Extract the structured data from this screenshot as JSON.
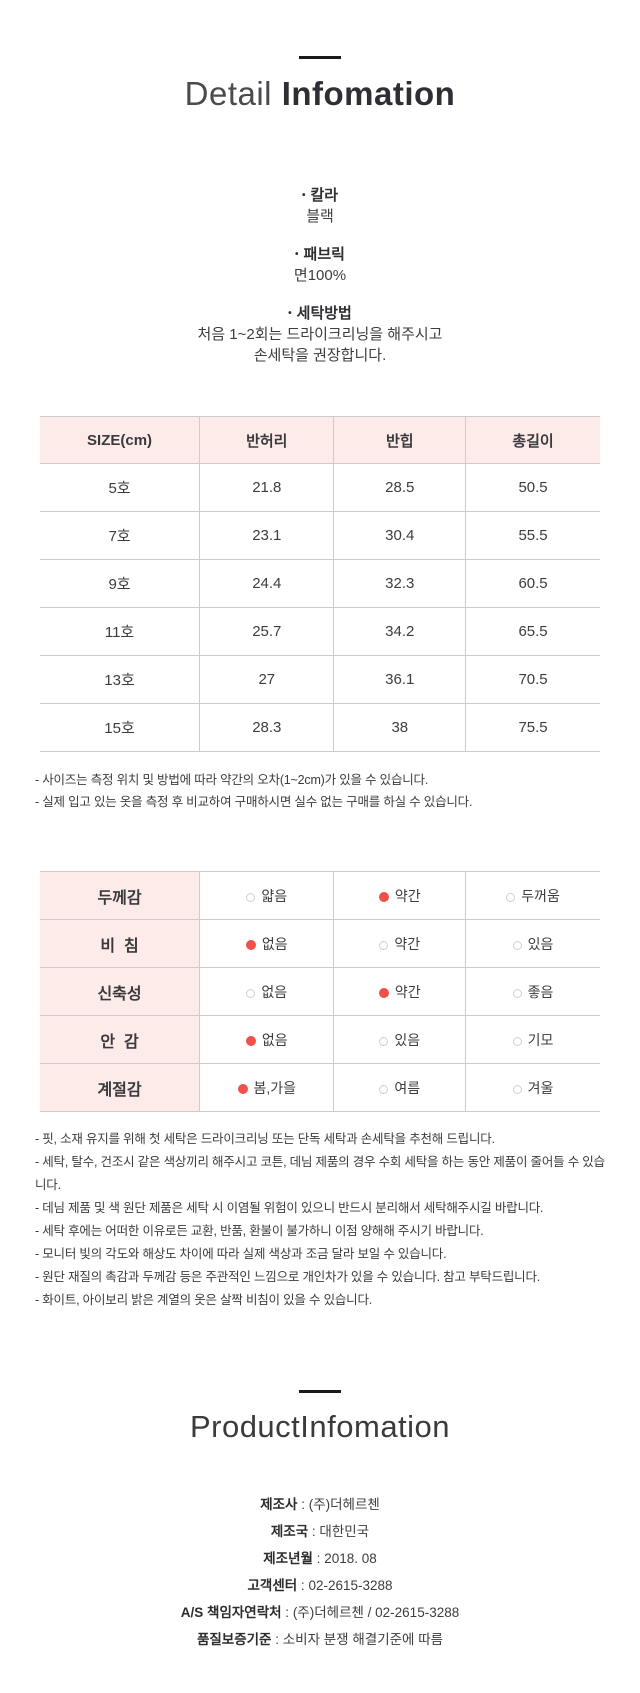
{
  "colors": {
    "header_pink": "#fcebe9",
    "accent_red": "#f0504a",
    "table_border": "#cccccc"
  },
  "header": {
    "title_light": "Detail ",
    "title_bold": "Infomation"
  },
  "specs": [
    {
      "label": "칼라",
      "lines": [
        "블랙"
      ]
    },
    {
      "label": "패브릭",
      "lines": [
        "면100%"
      ]
    },
    {
      "label": "세탁방법",
      "lines": [
        "처음 1~2회는 드라이크리닝을 해주시고",
        "손세탁을 권장합니다."
      ]
    }
  ],
  "size_table": {
    "headers": [
      "SIZE(cm)",
      "반허리",
      "반힙",
      "총길이"
    ],
    "rows": [
      [
        "5호",
        "21.8",
        "28.5",
        "50.5"
      ],
      [
        "7호",
        "23.1",
        "30.4",
        "55.5"
      ],
      [
        "9호",
        "24.4",
        "32.3",
        "60.5"
      ],
      [
        "11호",
        "25.7",
        "34.2",
        "65.5"
      ],
      [
        "13호",
        "27",
        "36.1",
        "70.5"
      ],
      [
        "15호",
        "28.3",
        "38",
        "75.5"
      ]
    ]
  },
  "size_notes": [
    "- 사이즈는 측정 위치 및 방법에 따라 약간의 오차(1~2cm)가 있을 수 있습니다.",
    "- 실제 입고 있는 옷을 측정 후 비교하여 구매하시면 실수 없는 구매를 하실 수 있습니다."
  ],
  "attr_table": {
    "rows": [
      {
        "label": "두께감",
        "options": [
          {
            "text": "얇음",
            "selected": false
          },
          {
            "text": "약간",
            "selected": true
          },
          {
            "text": "두꺼움",
            "selected": false
          }
        ]
      },
      {
        "label": "비  침",
        "options": [
          {
            "text": "없음",
            "selected": true
          },
          {
            "text": "약간",
            "selected": false
          },
          {
            "text": "있음",
            "selected": false
          }
        ]
      },
      {
        "label": "신축성",
        "options": [
          {
            "text": "없음",
            "selected": false
          },
          {
            "text": "약간",
            "selected": true
          },
          {
            "text": "좋음",
            "selected": false
          }
        ]
      },
      {
        "label": "안  감",
        "options": [
          {
            "text": "없음",
            "selected": true
          },
          {
            "text": "있음",
            "selected": false
          },
          {
            "text": "기모",
            "selected": false
          }
        ]
      },
      {
        "label": "계절감",
        "options": [
          {
            "text": "봄,가을",
            "selected": true
          },
          {
            "text": "여름",
            "selected": false
          },
          {
            "text": "겨울",
            "selected": false
          }
        ]
      }
    ]
  },
  "care_notes": [
    "- 핏, 소재 유지를 위해 첫 세탁은 드라이크리닝 또는 단독 세탁과 손세탁을 추천해 드립니다.",
    "- 세탁, 탈수, 건조시 같은 색상끼리 해주시고 코튼, 데님 제품의 경우 수회 세탁을 하는 동안 제품이 줄어들 수 있습니다.",
    "- 데님 제품 및 색 원단 제품은 세탁 시 이염될 위험이 있으니 반드시 분리해서 세탁해주시길 바랍니다.",
    "- 세탁 후에는 어떠한 이유로든 교환, 반품, 환불이 불가하니 이점 양해해 주시기 바랍니다.",
    "- 모니터 빛의 각도와 해상도 차이에 따라 실제 색상과 조금 달라 보일 수 있습니다.",
    "- 원단 재질의 촉감과 두께감 등은 주관적인 느낌으로 개인차가 있을 수 있습니다. 참고 부탁드립니다.",
    "- 화이트, 아이보리 밝은 계열의 옷은 살짝 비침이 있을 수 있습니다."
  ],
  "product_section": {
    "title": "ProductInfomation",
    "rows": [
      {
        "label": "제조사",
        "value": "(주)더헤르첸"
      },
      {
        "label": "제조국",
        "value": "대한민국"
      },
      {
        "label": "제조년월",
        "value": "2018. 08"
      },
      {
        "label": "고객센터",
        "value": "02-2615-3288"
      },
      {
        "label": "A/S 책임자연락처",
        "value": "(주)더헤르첸 / 02-2615-3288"
      },
      {
        "label": "품질보증기준",
        "value": "소비자 분쟁 해결기준에 따름"
      }
    ]
  }
}
